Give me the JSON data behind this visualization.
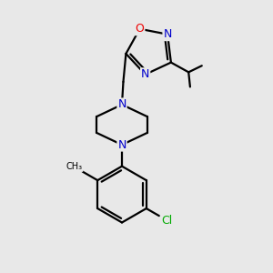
{
  "background_color": "#e8e8e8",
  "bond_color": "#000000",
  "N_color": "#0000cc",
  "O_color": "#ee0000",
  "Cl_color": "#00aa00",
  "line_width": 1.6,
  "figsize": [
    3.0,
    3.0
  ],
  "dpi": 100,
  "xlim": [
    0,
    10
  ],
  "ylim": [
    0,
    10
  ]
}
